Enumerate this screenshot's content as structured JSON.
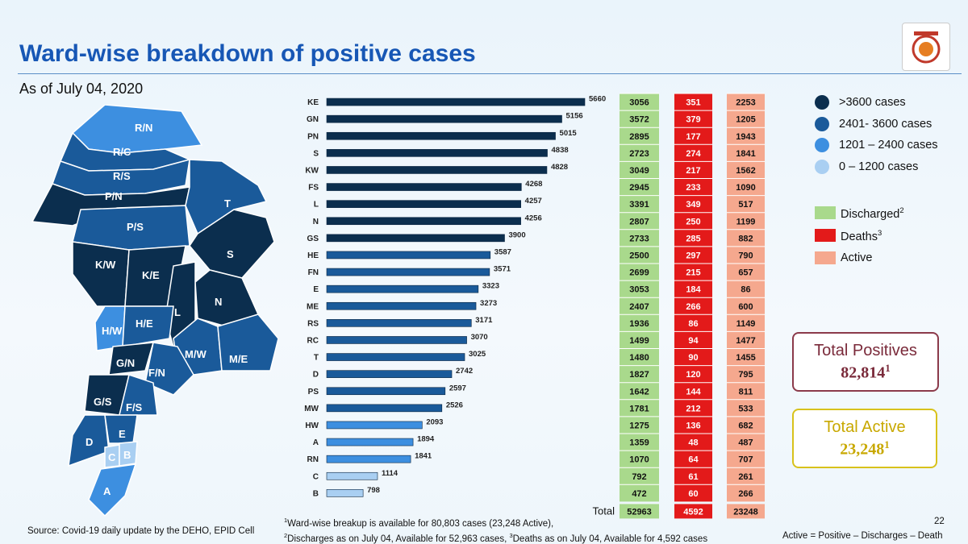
{
  "title": "Ward-wise breakdown of positive cases",
  "as_of": "As of July 04, 2020",
  "logo_name": "bmc-logo",
  "map": {
    "wards": [
      "R/N",
      "R/C",
      "R/S",
      "P/N",
      "P/S",
      "K/W",
      "K/E",
      "T",
      "S",
      "N",
      "L",
      "H/W",
      "H/E",
      "M/W",
      "M/E",
      "G/N",
      "F/N",
      "G/S",
      "F/S",
      "D",
      "E",
      "C",
      "B",
      "A"
    ]
  },
  "legend": {
    "cases": [
      {
        "label": ">3600 cases",
        "color": "#0b2e4e"
      },
      {
        "label": "2401- 3600 cases",
        "color": "#1a5a9a"
      },
      {
        "label": "1201 – 2400 cases",
        "color": "#3d8fe0"
      },
      {
        "label": "0 – 1200 cases",
        "color": "#a9cff2"
      }
    ],
    "discharged": "Discharged",
    "deaths": "Deaths",
    "active": "Active",
    "discharged_sup": "2",
    "deaths_sup": "3"
  },
  "chart_data": {
    "type": "bar",
    "orientation": "horizontal",
    "title": "Ward-wise breakdown of positive cases",
    "categories": [
      "KE",
      "GN",
      "PN",
      "S",
      "KW",
      "FS",
      "L",
      "N",
      "GS",
      "HE",
      "FN",
      "E",
      "ME",
      "RS",
      "RC",
      "T",
      "D",
      "PS",
      "MW",
      "HW",
      "A",
      "RN",
      "C",
      "B"
    ],
    "values": [
      5660,
      5156,
      5015,
      4838,
      4828,
      4268,
      4257,
      4256,
      3900,
      3587,
      3571,
      3323,
      3273,
      3171,
      3070,
      3025,
      2742,
      2597,
      2526,
      2093,
      1894,
      1841,
      1114,
      798
    ],
    "discharged": [
      3056,
      3572,
      2895,
      2723,
      3049,
      2945,
      3391,
      2807,
      2733,
      2500,
      2699,
      3053,
      2407,
      1936,
      1499,
      1480,
      1827,
      1642,
      1781,
      1275,
      1359,
      1070,
      792,
      472
    ],
    "deaths": [
      351,
      379,
      177,
      274,
      217,
      233,
      349,
      250,
      285,
      297,
      215,
      184,
      266,
      86,
      94,
      90,
      120,
      144,
      212,
      136,
      48,
      64,
      61,
      60
    ],
    "active": [
      2253,
      1205,
      1943,
      1841,
      1562,
      1090,
      517,
      1199,
      882,
      790,
      657,
      86,
      600,
      1149,
      1477,
      1455,
      795,
      811,
      533,
      682,
      487,
      707,
      261,
      266
    ],
    "totals": {
      "label": "Total",
      "discharged": 52963,
      "deaths": 4592,
      "active": 23248
    },
    "xlim": [
      0,
      5660
    ],
    "colors": {
      "gt3600": "#0b2e4e",
      "2401_3600": "#1a5a9a",
      "1201_2400": "#3d8fe0",
      "0_1200": "#a9cff2",
      "discharged": "#a9d98c",
      "deaths": "#e31a1a",
      "active": "#f5a88e"
    }
  },
  "totals_box": {
    "positive_title": "Total Positives",
    "positive_value": "82,814",
    "active_title": "Total Active",
    "active_value": "23,248",
    "sup": "1"
  },
  "footer": {
    "source": "Source: Covid-19 daily update by the DEHO, EPID Cell",
    "note1": "Ward-wise breakup is available for 80,803 cases (23,248 Active),",
    "note2a": "Discharges as on July 04, Available for 52,963 cases, ",
    "note2b": "Deaths as on July 04, Available for 4,592 cases",
    "page": "22",
    "formula": "Active = Positive – Discharges – Death",
    "sup1": "1",
    "sup2": "2",
    "sup3": "3"
  }
}
